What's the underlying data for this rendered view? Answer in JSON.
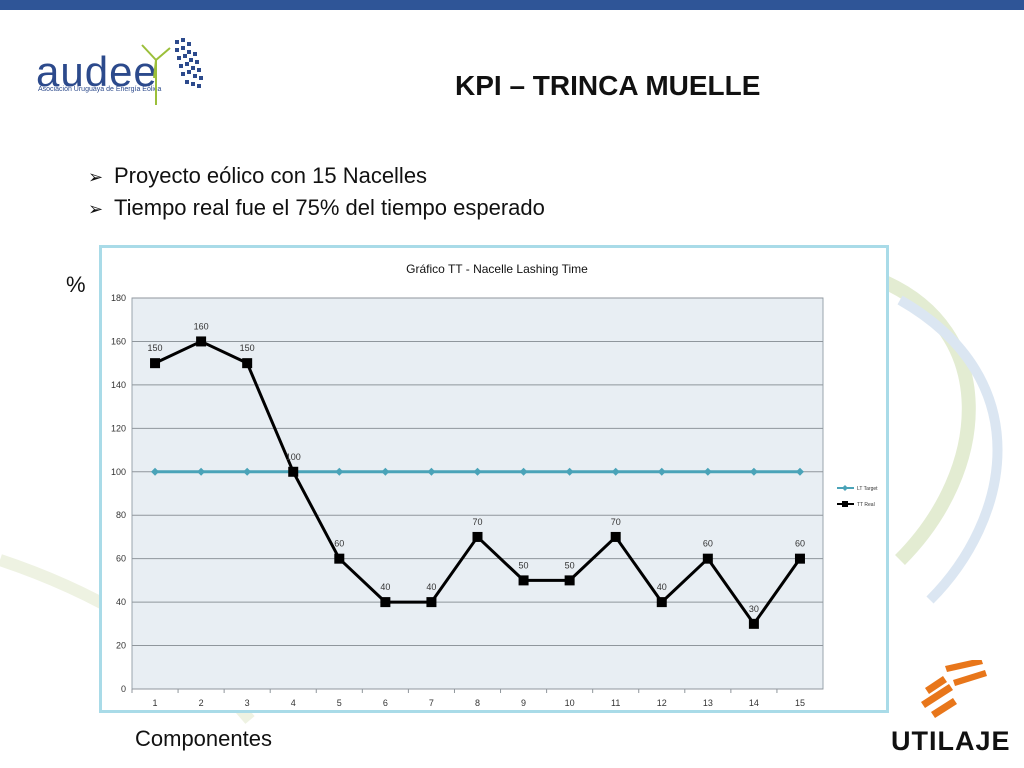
{
  "header": {
    "logo_text": "audee",
    "logo_subtitle": "Asociación Uruguaya de Energía Eólica",
    "title": "KPI – TRINCA MUELLE"
  },
  "bullets": [
    "Proyecto eólico con 15 Nacelles",
    "Tiempo real fue el 75% del tiempo esperado"
  ],
  "labels": {
    "y_unit": "%",
    "x_caption": "Componentes"
  },
  "footer_logo_text": "UTILAJE",
  "colors": {
    "top_bar": "#2f5597",
    "target_line": "#4aa3b8",
    "real_line": "#000000",
    "plot_bg": "#e8eef3",
    "logo_orange": "#e8761a"
  },
  "chart_data": {
    "type": "line",
    "title": "Gráfico TT - Nacelle Lashing Time",
    "categories": [
      1,
      2,
      3,
      4,
      5,
      6,
      7,
      8,
      9,
      10,
      11,
      12,
      13,
      14,
      15
    ],
    "ylim": [
      0,
      180
    ],
    "yticks": [
      0,
      20,
      40,
      60,
      80,
      100,
      120,
      140,
      160,
      180
    ],
    "grid": true,
    "legend_position": "right",
    "series": [
      {
        "name": "LT Target",
        "marker": "diamond",
        "values": [
          100,
          100,
          100,
          100,
          100,
          100,
          100,
          100,
          100,
          100,
          100,
          100,
          100,
          100,
          100
        ],
        "data_labels": false
      },
      {
        "name": "TT Real",
        "marker": "square",
        "values": [
          150,
          160,
          150,
          100,
          60,
          40,
          40,
          70,
          50,
          50,
          70,
          40,
          60,
          30,
          60
        ],
        "data_labels": true
      }
    ]
  }
}
